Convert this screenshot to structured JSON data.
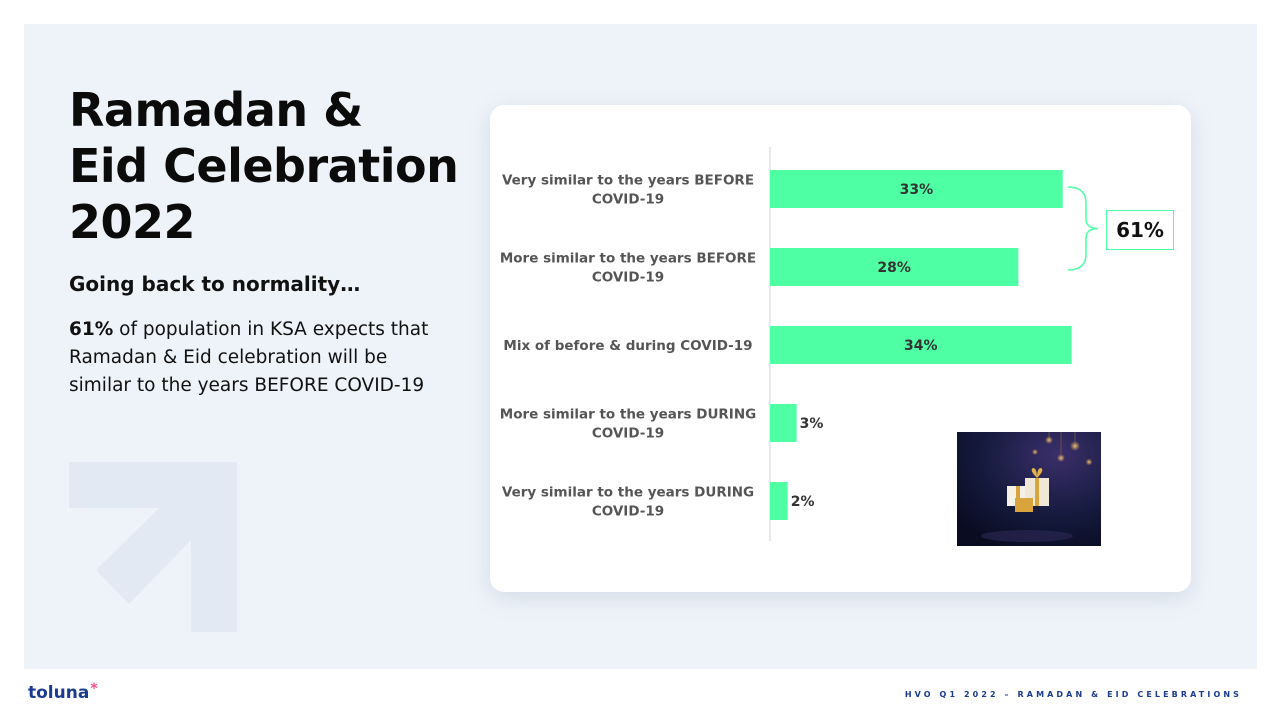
{
  "slide": {
    "title_lines": [
      "Ramadan &",
      "Eid Celebration",
      "2022"
    ],
    "subtitle": "Going back to normality…",
    "body_highlight": "61%",
    "body_rest": " of population in KSA expects that Ramadan & Eid celebration will be similar to the years BEFORE COVID-19",
    "footer": "HVO Q1 2022 – RAMADAN & EID CELEBRATIONS",
    "logo_text": "toluna",
    "logo_mark": "*",
    "total_label": "61%"
  },
  "colors": {
    "bar": "#4effa3",
    "panel": "#eef3f9",
    "brand": "#1a3b8e",
    "accent": "#ff4f8a"
  },
  "chart_data": {
    "type": "bar",
    "orientation": "horizontal",
    "categories": [
      [
        "Very similar to the years BEFORE",
        "COVID-19"
      ],
      [
        "More similar to the years BEFORE",
        "COVID-19"
      ],
      [
        "Mix of before & during COVID-19"
      ],
      [
        "More similar to the years DURING",
        "COVID-19"
      ],
      [
        "Very similar to the years DURING",
        "COVID-19"
      ]
    ],
    "values": [
      33,
      28,
      34,
      3,
      2
    ],
    "value_labels": [
      "33%",
      "28%",
      "34%",
      "3%",
      "2%"
    ],
    "xlim": [
      0,
      45
    ],
    "grid": false,
    "legend": "none",
    "bracket_group": [
      0,
      1
    ],
    "bracket_total": "61%"
  },
  "icons": {
    "decoration": "arrow-up-right-icon",
    "photo": "crescent-moon-gift-photo"
  }
}
